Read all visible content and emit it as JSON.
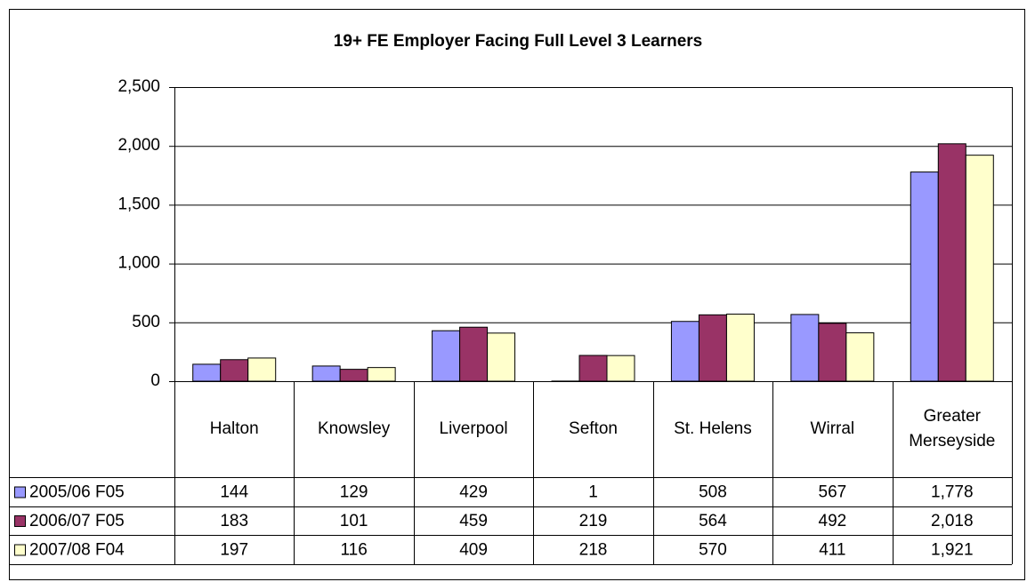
{
  "chart_data": {
    "type": "bar",
    "title": "19+ FE Employer Facing Full Level 3 Learners",
    "categories": [
      "Halton",
      "Knowsley",
      "Liverpool",
      "Sefton",
      "St. Helens",
      "Wirral",
      "Greater Merseyside"
    ],
    "series": [
      {
        "name": "2005/06 F05",
        "color": "#9999ff",
        "values": [
          144,
          129,
          429,
          1,
          508,
          567,
          1778
        ],
        "value_labels": [
          "144",
          "129",
          "429",
          "1",
          "508",
          "567",
          "1,778"
        ]
      },
      {
        "name": "2006/07 F05",
        "color": "#993366",
        "values": [
          183,
          101,
          459,
          219,
          564,
          492,
          2018
        ],
        "value_labels": [
          "183",
          "101",
          "459",
          "219",
          "564",
          "492",
          "2,018"
        ]
      },
      {
        "name": "2007/08 F04",
        "color": "#ffffcc",
        "values": [
          197,
          116,
          409,
          218,
          570,
          411,
          1921
        ],
        "value_labels": [
          "197",
          "116",
          "409",
          "218",
          "570",
          "411",
          "1,921"
        ]
      }
    ],
    "ylim": [
      0,
      2500
    ],
    "yticks": [
      0,
      500,
      {
        "value": 1000,
        "label": "1,000"
      },
      {
        "value": 1500,
        "label": "1,500"
      },
      {
        "value": 2000,
        "label": "2,000"
      },
      {
        "value": 2500,
        "label": "2,500"
      }
    ],
    "grid": true
  }
}
